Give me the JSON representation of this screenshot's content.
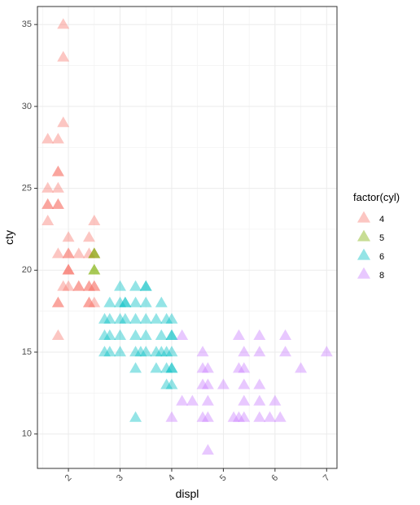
{
  "chart_data": {
    "type": "scatter",
    "xlabel": "displ",
    "ylabel": "cty",
    "xlim": [
      1.4,
      7.2
    ],
    "ylim": [
      7.9,
      36.1
    ],
    "x_ticks": [
      2,
      3,
      4,
      5,
      6,
      7
    ],
    "y_ticks": [
      10,
      15,
      20,
      25,
      30,
      35
    ],
    "x_tick_labels": [
      "2",
      "3",
      "4",
      "5",
      "6",
      "7"
    ],
    "y_tick_labels": [
      "10",
      "15",
      "20",
      "25",
      "30",
      "35"
    ],
    "x_tick_label_rotation": "45 degrees",
    "grid": true,
    "marker": "triangle",
    "legend": {
      "title": "factor(cyl)",
      "placement": "right",
      "entries": [
        {
          "label": "4",
          "color": "#F8766D"
        },
        {
          "label": "5",
          "color": "#7CAE00"
        },
        {
          "label": "6",
          "color": "#00BFC4"
        },
        {
          "label": "8",
          "color": "#C77CFF"
        }
      ]
    },
    "series": [
      {
        "name": "4",
        "color": "#F8766D",
        "points": [
          [
            1.9,
            35
          ],
          [
            1.9,
            33
          ],
          [
            1.9,
            29
          ],
          [
            1.6,
            28
          ],
          [
            1.8,
            28
          ],
          [
            1.8,
            26
          ],
          [
            1.8,
            26
          ],
          [
            1.6,
            25
          ],
          [
            1.8,
            25
          ],
          [
            1.6,
            24
          ],
          [
            1.6,
            24
          ],
          [
            1.8,
            24
          ],
          [
            1.8,
            24
          ],
          [
            1.6,
            23
          ],
          [
            2.5,
            23
          ],
          [
            2.0,
            22
          ],
          [
            2.4,
            22
          ],
          [
            1.8,
            21
          ],
          [
            2.0,
            21
          ],
          [
            2.0,
            21
          ],
          [
            2.2,
            21
          ],
          [
            2.4,
            21
          ],
          [
            2.5,
            21
          ],
          [
            2.0,
            20
          ],
          [
            2.0,
            20
          ],
          [
            2.0,
            20
          ],
          [
            1.9,
            19
          ],
          [
            2.2,
            19
          ],
          [
            2.4,
            19
          ],
          [
            2.4,
            19
          ],
          [
            2.5,
            19
          ],
          [
            2.5,
            19
          ],
          [
            2.0,
            19
          ],
          [
            1.8,
            18
          ],
          [
            1.8,
            18
          ],
          [
            2.4,
            18
          ],
          [
            2.4,
            18
          ],
          [
            2.5,
            18
          ],
          [
            1.8,
            16
          ],
          [
            2.2,
            19
          ]
        ]
      },
      {
        "name": "5",
        "color": "#7CAE00",
        "points": [
          [
            2.5,
            21
          ],
          [
            2.5,
            21
          ],
          [
            2.5,
            20
          ],
          [
            2.5,
            20
          ]
        ]
      },
      {
        "name": "6",
        "color": "#00BFC4",
        "points": [
          [
            2.8,
            18
          ],
          [
            3.0,
            18
          ],
          [
            3.1,
            18
          ],
          [
            3.1,
            18
          ],
          [
            3.3,
            18
          ],
          [
            3.5,
            18
          ],
          [
            3.8,
            18
          ],
          [
            3.0,
            19
          ],
          [
            3.3,
            19
          ],
          [
            3.5,
            19
          ],
          [
            3.5,
            19
          ],
          [
            2.7,
            17
          ],
          [
            2.8,
            17
          ],
          [
            3.0,
            17
          ],
          [
            3.1,
            17
          ],
          [
            3.3,
            17
          ],
          [
            3.5,
            17
          ],
          [
            3.7,
            17
          ],
          [
            3.9,
            17
          ],
          [
            4.0,
            17
          ],
          [
            2.7,
            16
          ],
          [
            2.8,
            16
          ],
          [
            3.0,
            16
          ],
          [
            3.3,
            16
          ],
          [
            3.5,
            16
          ],
          [
            3.8,
            16
          ],
          [
            4.0,
            16
          ],
          [
            4.0,
            16
          ],
          [
            2.7,
            15
          ],
          [
            2.8,
            15
          ],
          [
            3.0,
            15
          ],
          [
            3.3,
            15
          ],
          [
            3.4,
            15
          ],
          [
            3.5,
            15
          ],
          [
            3.7,
            15
          ],
          [
            3.8,
            15
          ],
          [
            3.9,
            15
          ],
          [
            4.0,
            15
          ],
          [
            3.3,
            14
          ],
          [
            3.7,
            14
          ],
          [
            3.9,
            14
          ],
          [
            4.0,
            14
          ],
          [
            4.0,
            14
          ],
          [
            3.9,
            13
          ],
          [
            4.0,
            13
          ],
          [
            3.3,
            11
          ]
        ]
      },
      {
        "name": "8",
        "color": "#C77CFF",
        "points": [
          [
            4.2,
            16
          ],
          [
            5.3,
            16
          ],
          [
            5.7,
            16
          ],
          [
            6.2,
            16
          ],
          [
            4.6,
            15
          ],
          [
            5.4,
            15
          ],
          [
            5.7,
            15
          ],
          [
            6.2,
            15
          ],
          [
            7.0,
            15
          ],
          [
            4.6,
            14
          ],
          [
            4.7,
            14
          ],
          [
            5.3,
            14
          ],
          [
            5.4,
            14
          ],
          [
            6.5,
            14
          ],
          [
            4.6,
            13
          ],
          [
            4.7,
            13
          ],
          [
            5.0,
            13
          ],
          [
            5.4,
            13
          ],
          [
            5.7,
            13
          ],
          [
            4.2,
            12
          ],
          [
            4.4,
            12
          ],
          [
            4.7,
            12
          ],
          [
            5.4,
            12
          ],
          [
            5.7,
            12
          ],
          [
            6.0,
            12
          ],
          [
            4.0,
            11
          ],
          [
            4.6,
            11
          ],
          [
            4.7,
            11
          ],
          [
            5.2,
            11
          ],
          [
            5.3,
            11
          ],
          [
            5.4,
            11
          ],
          [
            5.7,
            11
          ],
          [
            5.9,
            11
          ],
          [
            6.1,
            11
          ],
          [
            4.7,
            9
          ]
        ]
      }
    ]
  }
}
